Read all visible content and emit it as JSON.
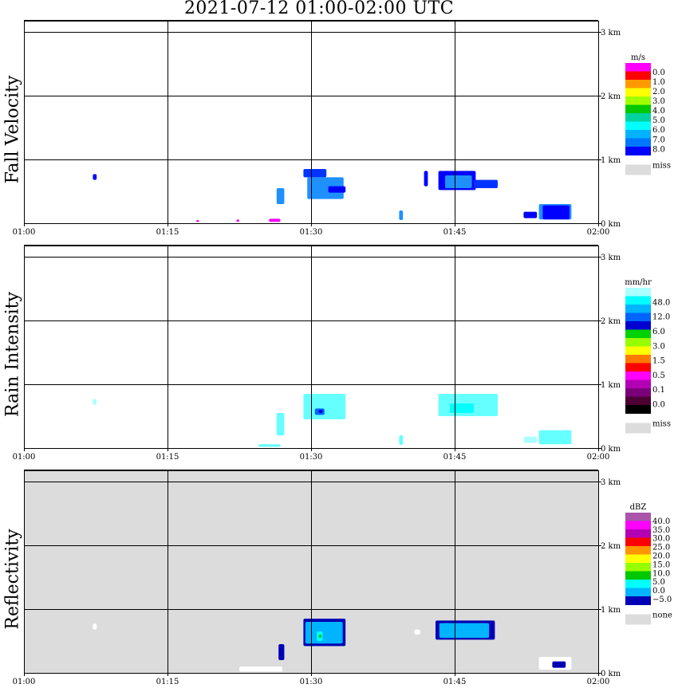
{
  "title": "2021-07-12   01:00-02:00 UTC",
  "colors": {
    "grid": "#000000",
    "missing": "#dcdcdc",
    "background": "#ffffff"
  },
  "chart_data": [
    {
      "type": "heatmap",
      "ylabel": "Fall Velocity",
      "x_ticks": [
        "01:00",
        "01:15",
        "01:30",
        "01:45",
        "02:00"
      ],
      "y_ticks": [
        "0 km",
        "1 km",
        "2 km",
        "3 km"
      ],
      "xlim": [
        "01:00",
        "02:00"
      ],
      "ylim_km": [
        0,
        3.2
      ],
      "grid": true,
      "legend": {
        "position": "right",
        "unit": "m/s",
        "colors": [
          "#0000ff",
          "#0077ff",
          "#00b2ff",
          "#00ffff",
          "#00d2a0",
          "#00c800",
          "#a0ff00",
          "#ffff00",
          "#ff9900",
          "#ff0000",
          "#ff00ff"
        ],
        "labels": [
          "0.0",
          "1.0",
          "2.0",
          "3.0",
          "4.0",
          "5.0",
          "6.0",
          "7.0",
          "8.0"
        ],
        "missing_label": "miss"
      },
      "echoes": [
        {
          "t0": 7.2,
          "t1": 7.6,
          "h0": 0.68,
          "h1": 0.77,
          "color": "#0000ff"
        },
        {
          "t0": 29.2,
          "t1": 31.6,
          "h0": 0.72,
          "h1": 0.85,
          "color": "#0033ff"
        },
        {
          "t0": 29.6,
          "t1": 33.4,
          "h0": 0.38,
          "h1": 0.72,
          "color": "#1e90ff"
        },
        {
          "t0": 31.8,
          "t1": 33.6,
          "h0": 0.48,
          "h1": 0.58,
          "color": "#0000ff"
        },
        {
          "t0": 26.4,
          "t1": 27.2,
          "h0": 0.3,
          "h1": 0.55,
          "color": "#1e90ff"
        },
        {
          "t0": 25.6,
          "t1": 26.8,
          "h0": 0.02,
          "h1": 0.07,
          "color": "#ff00ff"
        },
        {
          "t0": 18.0,
          "t1": 18.3,
          "h0": 0.02,
          "h1": 0.05,
          "color": "#ff00ff"
        },
        {
          "t0": 22.2,
          "t1": 22.5,
          "h0": 0.02,
          "h1": 0.06,
          "color": "#ff00ff"
        },
        {
          "t0": 43.3,
          "t1": 47.2,
          "h0": 0.52,
          "h1": 0.82,
          "color": "#0000ff"
        },
        {
          "t0": 44.0,
          "t1": 46.8,
          "h0": 0.55,
          "h1": 0.75,
          "color": "#1e90ff"
        },
        {
          "t0": 47.0,
          "t1": 49.5,
          "h0": 0.55,
          "h1": 0.68,
          "color": "#0033ff"
        },
        {
          "t0": 41.8,
          "t1": 42.2,
          "h0": 0.58,
          "h1": 0.82,
          "color": "#0000ff"
        },
        {
          "t0": 39.2,
          "t1": 39.6,
          "h0": 0.05,
          "h1": 0.2,
          "color": "#1e90ff"
        },
        {
          "t0": 53.8,
          "t1": 57.2,
          "h0": 0.06,
          "h1": 0.3,
          "color": "#1e90ff"
        },
        {
          "t0": 54.2,
          "t1": 57.0,
          "h0": 0.06,
          "h1": 0.28,
          "color": "#0000ff"
        },
        {
          "t0": 52.2,
          "t1": 53.6,
          "h0": 0.08,
          "h1": 0.18,
          "color": "#0000ff"
        }
      ]
    },
    {
      "type": "heatmap",
      "ylabel": "Rain Intensity",
      "x_ticks": [
        "01:00",
        "01:15",
        "01:30",
        "01:45",
        "02:00"
      ],
      "y_ticks": [
        "0 km",
        "1 km",
        "2 km",
        "3 km"
      ],
      "xlim": [
        "01:00",
        "02:00"
      ],
      "ylim_km": [
        0,
        3.2
      ],
      "grid": true,
      "legend": {
        "position": "right",
        "unit": "mm/hr",
        "colors": [
          "#000000",
          "#4d0033",
          "#7a007a",
          "#b400b4",
          "#ff00ff",
          "#ff0000",
          "#ff7800",
          "#ffff00",
          "#96ff00",
          "#00d200",
          "#0000d2",
          "#0064ff",
          "#00b4ff",
          "#00ffff",
          "#aaffff"
        ],
        "labels": [
          "48.0",
          "12.0",
          "6.0",
          "3.0",
          "1.5",
          "0.5",
          "0.1",
          "0.0"
        ],
        "missing_label": "miss"
      },
      "echoes": [
        {
          "t0": 7.2,
          "t1": 7.6,
          "h0": 0.68,
          "h1": 0.77,
          "color": "#aaffff"
        },
        {
          "t0": 29.2,
          "t1": 33.6,
          "h0": 0.45,
          "h1": 0.85,
          "color": "#66ffff"
        },
        {
          "t0": 30.4,
          "t1": 31.4,
          "h0": 0.52,
          "h1": 0.62,
          "color": "#0064ff"
        },
        {
          "t0": 30.8,
          "t1": 31.2,
          "h0": 0.55,
          "h1": 0.6,
          "color": "#0000d2"
        },
        {
          "t0": 26.4,
          "t1": 27.2,
          "h0": 0.2,
          "h1": 0.55,
          "color": "#66ffff"
        },
        {
          "t0": 24.5,
          "t1": 26.8,
          "h0": 0.02,
          "h1": 0.06,
          "color": "#66ffff"
        },
        {
          "t0": 43.3,
          "t1": 49.5,
          "h0": 0.5,
          "h1": 0.85,
          "color": "#66ffff"
        },
        {
          "t0": 44.5,
          "t1": 47.0,
          "h0": 0.55,
          "h1": 0.7,
          "color": "#00ffff"
        },
        {
          "t0": 39.2,
          "t1": 39.6,
          "h0": 0.05,
          "h1": 0.2,
          "color": "#66ffff"
        },
        {
          "t0": 53.8,
          "t1": 57.2,
          "h0": 0.06,
          "h1": 0.28,
          "color": "#66ffff"
        },
        {
          "t0": 52.2,
          "t1": 53.6,
          "h0": 0.08,
          "h1": 0.18,
          "color": "#aaffff"
        }
      ]
    },
    {
      "type": "heatmap",
      "ylabel": "Reflectivity",
      "x_ticks": [
        "01:00",
        "01:15",
        "01:30",
        "01:45",
        "02:00"
      ],
      "y_ticks": [
        "0 km",
        "1 km",
        "2 km",
        "3 km"
      ],
      "xlim": [
        "01:00",
        "02:00"
      ],
      "ylim_km": [
        0,
        3.2
      ],
      "grid": true,
      "legend": {
        "position": "right",
        "unit": "dBZ",
        "colors": [
          "#0000b4",
          "#00b4ff",
          "#00ffff",
          "#00c800",
          "#96ff00",
          "#ffff00",
          "#ff9600",
          "#ff0000",
          "#b400b4",
          "#ff00ff",
          "#aa55aa"
        ],
        "labels": [
          "40.0",
          "35.0",
          "30.0",
          "25.0",
          "20.0",
          "15.0",
          "10.0",
          "5.0",
          "0.0",
          "−5.0"
        ],
        "missing_label": "none"
      },
      "echoes": [
        {
          "t0": 29.2,
          "t1": 33.6,
          "h0": 0.42,
          "h1": 0.85,
          "color": "#0000b4"
        },
        {
          "t0": 29.4,
          "t1": 33.3,
          "h0": 0.46,
          "h1": 0.8,
          "color": "#00b4ff"
        },
        {
          "t0": 30.6,
          "t1": 31.2,
          "h0": 0.5,
          "h1": 0.65,
          "color": "#00ffff"
        },
        {
          "t0": 30.8,
          "t1": 31.1,
          "h0": 0.55,
          "h1": 0.6,
          "color": "#00c800"
        },
        {
          "t0": 26.6,
          "t1": 27.2,
          "h0": 0.2,
          "h1": 0.45,
          "color": "#0000b4"
        },
        {
          "t0": 43.0,
          "t1": 49.2,
          "h0": 0.52,
          "h1": 0.82,
          "color": "#0000b4"
        },
        {
          "t0": 43.4,
          "t1": 48.6,
          "h0": 0.55,
          "h1": 0.78,
          "color": "#00b4ff"
        },
        {
          "t0": 40.8,
          "t1": 41.4,
          "h0": 0.6,
          "h1": 0.68,
          "color": "#ffffff"
        },
        {
          "t0": 53.8,
          "t1": 57.2,
          "h0": 0.05,
          "h1": 0.25,
          "color": "#ffffff"
        },
        {
          "t0": 55.2,
          "t1": 56.6,
          "h0": 0.08,
          "h1": 0.18,
          "color": "#0000b4"
        },
        {
          "t0": 7.2,
          "t1": 7.6,
          "h0": 0.68,
          "h1": 0.77,
          "color": "#ffffff"
        },
        {
          "t0": 22.5,
          "t1": 27.0,
          "h0": 0.02,
          "h1": 0.1,
          "color": "#ffffff"
        }
      ]
    }
  ]
}
